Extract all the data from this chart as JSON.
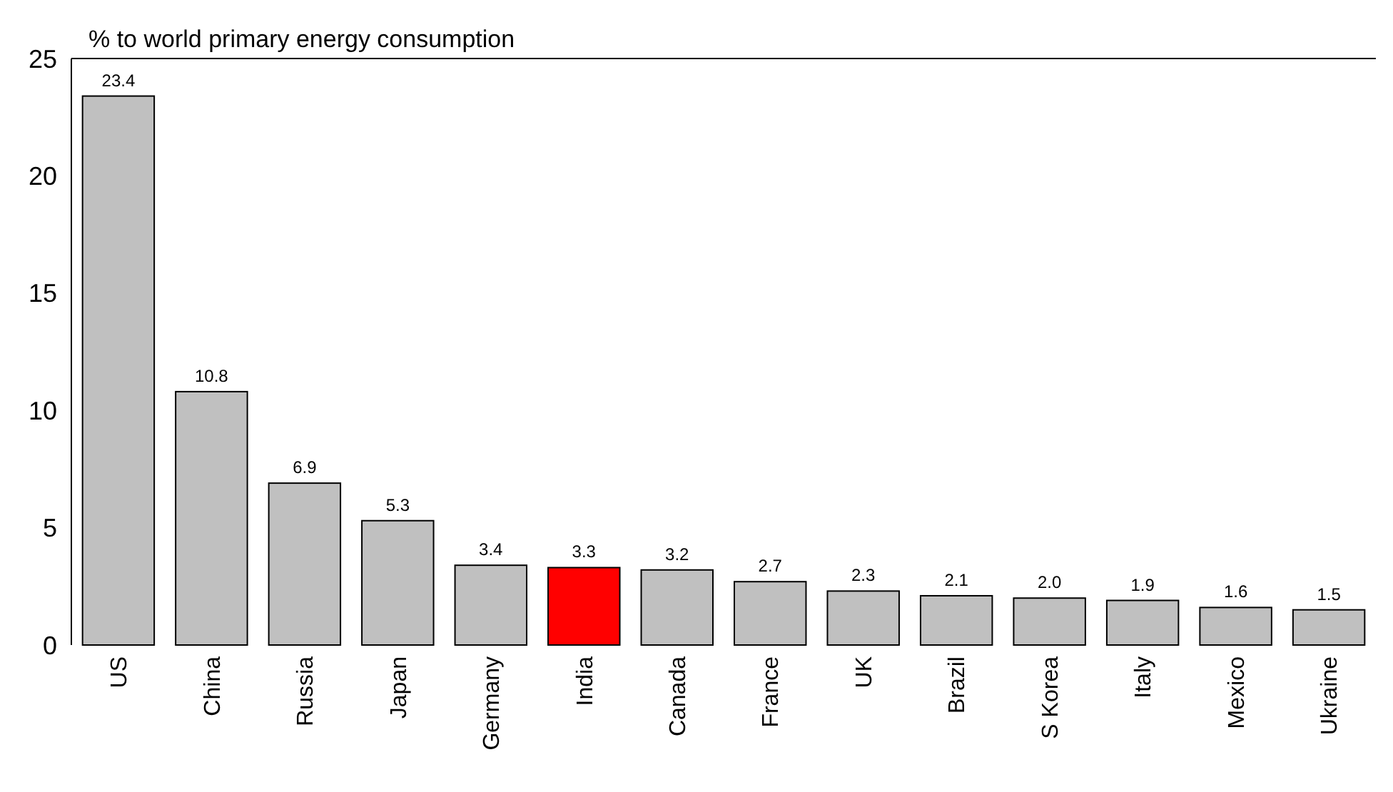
{
  "chart_data": {
    "type": "bar",
    "ylabel": "% to world primary energy consumption",
    "categories": [
      "US",
      "China",
      "Russia",
      "Japan",
      "Germany",
      "India",
      "Canada",
      "France",
      "UK",
      "Brazil",
      "S Korea",
      "Italy",
      "Mexico",
      "Ukraine"
    ],
    "values": [
      23.4,
      10.8,
      6.9,
      5.3,
      3.4,
      3.3,
      3.2,
      2.7,
      2.3,
      2.1,
      2.0,
      1.9,
      1.6,
      1.5
    ],
    "colors": [
      "#c0c0c0",
      "#c0c0c0",
      "#c0c0c0",
      "#c0c0c0",
      "#c0c0c0",
      "#ff0000",
      "#c0c0c0",
      "#c0c0c0",
      "#c0c0c0",
      "#c0c0c0",
      "#c0c0c0",
      "#c0c0c0",
      "#c0c0c0",
      "#c0c0c0"
    ],
    "value_labels": [
      "23.4",
      "10.8",
      "6.9",
      "5.3",
      "3.4",
      "3.3",
      "3.2",
      "2.7",
      "2.3",
      "2.1",
      "2.0",
      "1.9",
      "1.6",
      "1.5"
    ],
    "ylim": [
      0,
      25
    ],
    "yticks": [
      0,
      5,
      10,
      15,
      20,
      25
    ]
  }
}
